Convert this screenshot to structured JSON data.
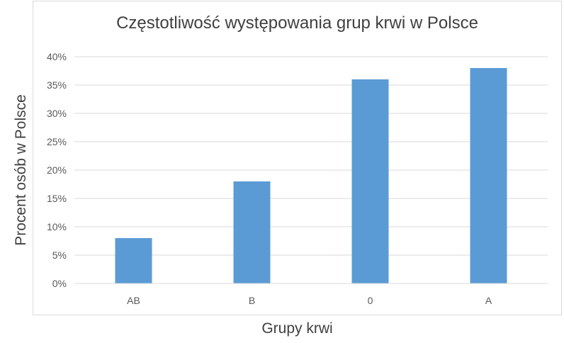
{
  "chart_data": {
    "type": "bar",
    "title": "Częstotliwość występowania grup krwi w Polsce",
    "xlabel": "Grupy krwi",
    "ylabel": "Procent osób w Polsce",
    "categories": [
      "AB",
      "B",
      "0",
      "A"
    ],
    "values": [
      0.08,
      0.18,
      0.36,
      0.38
    ],
    "ylim": [
      0,
      0.4
    ],
    "yticks": [
      "0%",
      "5%",
      "10%",
      "15%",
      "20%",
      "25%",
      "30%",
      "35%",
      "40%"
    ],
    "grid": true,
    "legend": "none",
    "colors": {
      "bar": "#5b9bd5",
      "grid": "#d9d9d9",
      "text": "#595959"
    }
  }
}
